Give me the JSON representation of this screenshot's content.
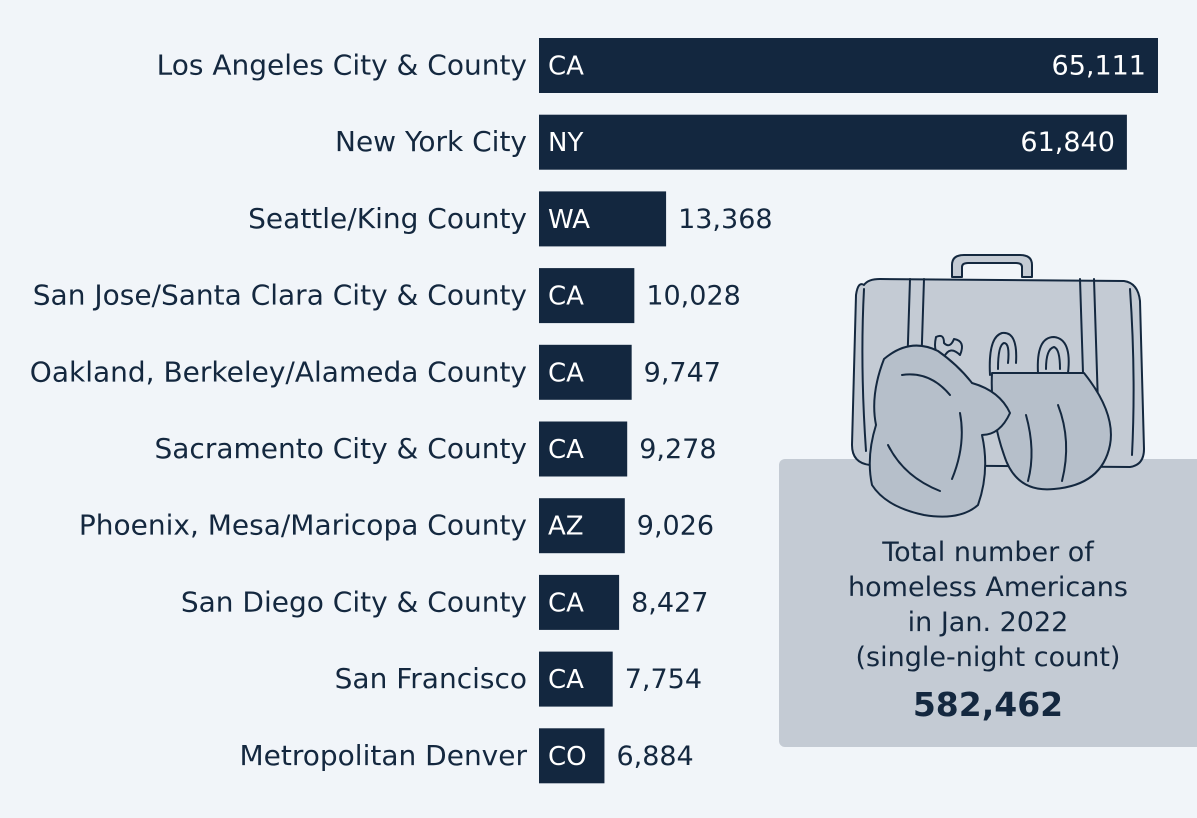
{
  "chart_data": {
    "type": "bar",
    "orientation": "horizontal",
    "categories": [
      "Los Angeles City & County",
      "New York City",
      "Seattle/King County",
      "San Jose/Santa Clara City & County",
      "Oakland, Berkeley/Alameda County",
      "Sacramento City & County",
      "Phoenix, Mesa/Maricopa County",
      "San Diego City & County",
      "San Francisco",
      "Metropolitan Denver"
    ],
    "states": [
      "CA",
      "NY",
      "WA",
      "CA",
      "CA",
      "CA",
      "AZ",
      "CA",
      "CA",
      "CO"
    ],
    "values": [
      65111,
      61840,
      13368,
      10028,
      9747,
      9278,
      9026,
      8427,
      7754,
      6884
    ],
    "value_labels": [
      "65,111",
      "61,840",
      "13,368",
      "10,028",
      "9,747",
      "9,278",
      "9,026",
      "8,427",
      "7,754",
      "6,884"
    ],
    "xlim": [
      0,
      65111
    ],
    "bar_color": "#13273f"
  },
  "info": {
    "text_lines": [
      "Total number of",
      "homeless Americans",
      "in Jan. 2022",
      "(single-night count)"
    ],
    "total": "582,462"
  },
  "illustration": {
    "icon": "homeless-belongings-icon"
  }
}
